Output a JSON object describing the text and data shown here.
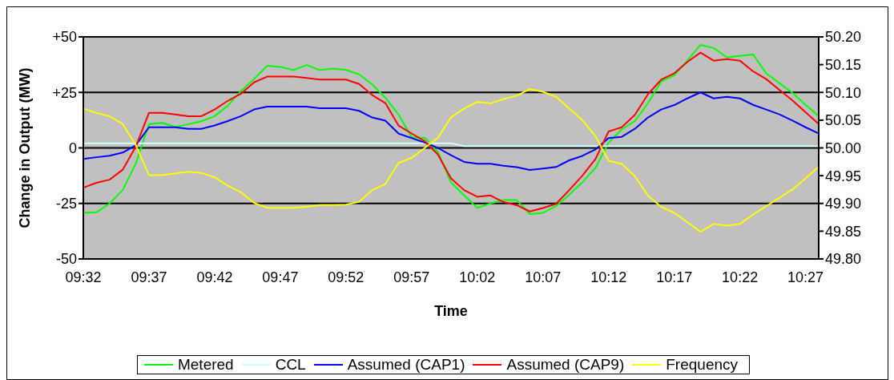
{
  "chart_data": {
    "type": "line",
    "xlabel": "Time",
    "ylabel": "Change in Output (MW)",
    "categories": [
      "09:32",
      null,
      null,
      null,
      null,
      "09:37",
      null,
      null,
      null,
      null,
      "09:42",
      null,
      null,
      null,
      null,
      "09:47",
      null,
      null,
      null,
      null,
      "09:52",
      null,
      null,
      null,
      null,
      "09:57",
      null,
      null,
      null,
      null,
      "10:02",
      null,
      null,
      null,
      null,
      "10:07",
      null,
      null,
      null,
      null,
      "10:12",
      null,
      null,
      null,
      null,
      "10:17",
      null,
      null,
      null,
      null,
      "10:22",
      null,
      null,
      null,
      null,
      "10:27",
      null
    ],
    "ylim": [
      -50,
      50
    ],
    "yticks": [
      {
        "value": 50,
        "label": "+50"
      },
      {
        "value": 25,
        "label": "+25"
      },
      0,
      -25,
      -50
    ],
    "y2lim": [
      49.8,
      50.2
    ],
    "y2ticks": [
      {
        "value": 49.8,
        "label": "49.80"
      },
      {
        "value": 49.85,
        "label": "49.85"
      },
      {
        "value": 49.9,
        "label": "49.90"
      },
      {
        "value": 49.95,
        "label": "49.95"
      },
      {
        "value": 50,
        "label": "50.00"
      },
      {
        "value": 50.05,
        "label": "50.05"
      },
      {
        "value": 50.1,
        "label": "50.10"
      },
      {
        "value": 50.15,
        "label": "50.15"
      },
      {
        "value": 50.2,
        "label": "50.20"
      }
    ],
    "grid": "y",
    "legend": "bottom",
    "marker": "none",
    "line_style": "solid",
    "series": [
      {
        "name": "Metered",
        "color": "#00ff00",
        "values": [
          -29.2,
          -29,
          -25,
          -19,
          -7,
          10.7,
          11.3,
          9.5,
          10.7,
          12,
          14.3,
          19,
          25.6,
          31,
          37,
          36.5,
          35,
          37.3,
          35,
          35.7,
          35.1,
          33.1,
          28.6,
          22.6,
          15.1,
          4.8,
          4.5,
          -1.8,
          -15.5,
          -21.4,
          -27,
          -25,
          -23.5,
          -23.5,
          -29.8,
          -29.2,
          -26.2,
          -21.1,
          -15.5,
          -9,
          2.4,
          8.3,
          12.1,
          20.2,
          29.8,
          32.7,
          39.3,
          46.4,
          45,
          40.8,
          41.4,
          42.1,
          33.6,
          29.2,
          24.8,
          19.4,
          14.3
        ]
      },
      {
        "name": "CCL",
        "color": "#ccffff",
        "values": [
          2.1,
          2.1,
          2.1,
          2.1,
          2.1,
          2.1,
          2.1,
          2.1,
          2.1,
          2.1,
          2.1,
          2.1,
          2.1,
          2.1,
          2.1,
          2.1,
          2.1,
          2.1,
          2.1,
          2.1,
          2.1,
          2.1,
          2.1,
          2.1,
          2.1,
          2.1,
          2.1,
          2.1,
          2.1,
          0.8,
          0.8,
          0.8,
          0.8,
          0.8,
          0.8,
          0.8,
          0.8,
          0.8,
          0.8,
          0.8,
          0.8,
          0.8,
          0.8,
          0.8,
          0.8,
          0.8,
          0.8,
          0.8,
          0.8,
          0.8,
          0.8,
          0.8,
          0.8,
          0.8,
          0.8,
          0.8,
          0.8
        ]
      },
      {
        "name": "Assumed (CAP1)",
        "color": "#0000ff",
        "values": [
          -5,
          -4.2,
          -3.5,
          -2.1,
          1.2,
          9.3,
          9.3,
          9.3,
          8.6,
          8.6,
          10.1,
          12.1,
          14.3,
          17.3,
          18.6,
          18.6,
          18.6,
          18.6,
          17.9,
          17.9,
          17.9,
          16.7,
          13.7,
          12.3,
          6.5,
          4.4,
          2.4,
          0,
          -3.3,
          -6.3,
          -7.1,
          -7.1,
          -8,
          -8.7,
          -9.9,
          -9.3,
          -8.6,
          -5.6,
          -3.6,
          -0.7,
          4.4,
          5,
          8.6,
          13.7,
          17.3,
          19.3,
          22.3,
          25,
          22.3,
          23,
          22.3,
          19.4,
          17.3,
          15.1,
          12.3,
          9.3,
          6.5
        ]
      },
      {
        "name": "Assumed (CAP9)",
        "color": "#ff0000",
        "values": [
          -17.9,
          -15.7,
          -14.3,
          -9.8,
          0.6,
          15.8,
          15.8,
          15.1,
          14.3,
          14.3,
          17.3,
          21.2,
          24.4,
          29.5,
          32.1,
          32.1,
          32.1,
          31.5,
          30.8,
          30.8,
          30.8,
          28.8,
          23.8,
          20.2,
          10.1,
          6.5,
          3,
          -3,
          -13.7,
          -19,
          -22,
          -21.4,
          -24.4,
          -25.8,
          -28.6,
          -27.1,
          -25.2,
          -19,
          -12.5,
          -5,
          7.4,
          9.3,
          14.9,
          24.2,
          30.7,
          33.6,
          38.7,
          42.9,
          39.3,
          40,
          39.3,
          34.5,
          31,
          26.2,
          21.4,
          16.1,
          10.7
        ]
      },
      {
        "name": "Frequency",
        "color": "#ffff00",
        "axis": "y2",
        "values": [
          50.071,
          50.063,
          50.057,
          50.043,
          50.005,
          49.951,
          49.951,
          49.954,
          49.957,
          49.955,
          49.947,
          49.932,
          49.92,
          49.901,
          49.892,
          49.892,
          49.892,
          49.894,
          49.897,
          49.897,
          49.898,
          49.903,
          49.924,
          49.935,
          49.973,
          49.982,
          50,
          50.018,
          50.055,
          50.071,
          50.083,
          50.08,
          50.088,
          50.094,
          50.106,
          50.101,
          50.092,
          50.071,
          50.05,
          50.021,
          49.977,
          49.971,
          49.949,
          49.914,
          49.894,
          49.883,
          49.866,
          49.849,
          49.863,
          49.86,
          49.863,
          49.88,
          49.895,
          49.91,
          49.925,
          49.945,
          49.966
        ]
      }
    ]
  }
}
